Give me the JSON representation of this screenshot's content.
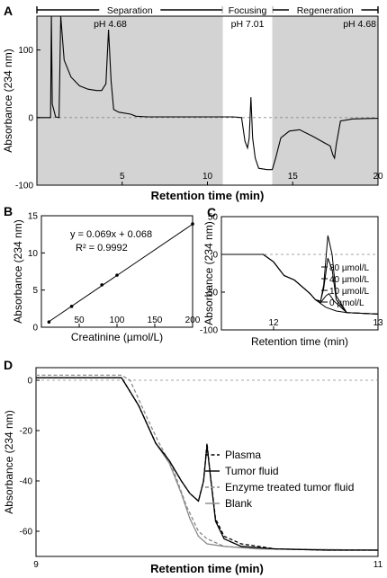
{
  "chart_data": [
    {
      "id": "A",
      "panel_label": "A",
      "type": "line",
      "xlabel": "Retention time (min)",
      "ylabel": "Absorbance (234 nm)",
      "xlim": [
        0,
        20
      ],
      "ylim": [
        -100,
        150
      ],
      "x_ticks": [
        "5",
        "10",
        "15",
        "20"
      ],
      "y_ticks": [
        "-100",
        "0",
        "100"
      ],
      "phases": [
        {
          "name": "Separation",
          "ph": "pH 4.68",
          "x_start": 0,
          "x_end": 10.9,
          "shaded": true
        },
        {
          "name": "Focusing",
          "ph": "pH 7.01",
          "x_start": 10.9,
          "x_end": 13.8,
          "shaded": false
        },
        {
          "name": "Regeneration",
          "ph": "pH 4.68",
          "x_start": 13.8,
          "x_end": 20,
          "shaded": true
        }
      ],
      "series": [
        {
          "points": [
            [
              0.0,
              0
            ],
            [
              0.5,
              0
            ],
            [
              0.8,
              0
            ],
            [
              0.85,
              150
            ],
            [
              0.9,
              20
            ],
            [
              1.1,
              1
            ],
            [
              1.3,
              0
            ],
            [
              1.4,
              150
            ],
            [
              1.6,
              85
            ],
            [
              2.0,
              60
            ],
            [
              2.5,
              47
            ],
            [
              3.0,
              42
            ],
            [
              3.5,
              40
            ],
            [
              3.8,
              40
            ],
            [
              4.05,
              50
            ],
            [
              4.2,
              130
            ],
            [
              4.35,
              55
            ],
            [
              4.5,
              12
            ],
            [
              4.8,
              8
            ],
            [
              5.5,
              5
            ],
            [
              5.8,
              2
            ],
            [
              6.5,
              1
            ],
            [
              8,
              1
            ],
            [
              10.9,
              1
            ],
            [
              11.5,
              1
            ],
            [
              12.0,
              0
            ],
            [
              12.2,
              -35
            ],
            [
              12.35,
              -45
            ],
            [
              12.45,
              -30
            ],
            [
              12.55,
              30
            ],
            [
              12.65,
              -30
            ],
            [
              12.8,
              -60
            ],
            [
              13.0,
              -75
            ],
            [
              13.5,
              -77
            ],
            [
              13.8,
              -77
            ],
            [
              14.0,
              -60
            ],
            [
              14.3,
              -30
            ],
            [
              14.8,
              -20
            ],
            [
              15.4,
              -18
            ],
            [
              16.2,
              -28
            ],
            [
              16.9,
              -38
            ],
            [
              17.2,
              -42
            ],
            [
              17.35,
              -55
            ],
            [
              17.45,
              -60
            ],
            [
              17.55,
              -40
            ],
            [
              17.8,
              -5
            ],
            [
              18.5,
              -2
            ],
            [
              20,
              -1
            ]
          ]
        }
      ]
    },
    {
      "id": "B",
      "panel_label": "B",
      "type": "scatter",
      "xlabel": "Creatinine (µmol/L)",
      "ylabel": "Absorbance (234 nm)",
      "xlim": [
        0,
        200
      ],
      "ylim": [
        0,
        15
      ],
      "x_ticks": [
        "50",
        "100",
        "150",
        "200"
      ],
      "y_ticks": [
        "0",
        "5",
        "10",
        "15"
      ],
      "annotation": [
        "y = 0.069x + 0.068",
        "R² = 0.9992"
      ],
      "x": [
        10,
        40,
        80,
        100,
        200
      ],
      "y": [
        0.7,
        2.8,
        5.7,
        7.0,
        13.9
      ],
      "fit": {
        "slope": 0.069,
        "intercept": 0.068
      }
    },
    {
      "id": "C",
      "panel_label": "C",
      "type": "line",
      "xlabel": "Retention time (min)",
      "ylabel": "Absorbance (234 nm)",
      "xlim": [
        11.5,
        13
      ],
      "ylim": [
        -100,
        50
      ],
      "x_ticks": [
        "12",
        "13"
      ],
      "y_ticks": [
        "-100",
        "-50",
        "0",
        "50"
      ],
      "legend": [
        "80 µmol/L",
        "40 µmol/L",
        "10 µmol/L",
        "0 µmol/L"
      ],
      "series": [
        {
          "points": [
            [
              11.5,
              0
            ],
            [
              11.9,
              0
            ],
            [
              12.0,
              -10
            ],
            [
              12.1,
              -28
            ],
            [
              12.2,
              -34
            ],
            [
              12.3,
              -46
            ],
            [
              12.35,
              -52
            ],
            [
              12.4,
              -60
            ],
            [
              12.45,
              -62
            ],
            [
              12.48,
              -40
            ],
            [
              12.52,
              25
            ],
            [
              12.56,
              0
            ],
            [
              12.6,
              -55
            ],
            [
              12.7,
              -77
            ],
            [
              13.0,
              -79
            ]
          ]
        },
        {
          "points": [
            [
              11.5,
              0
            ],
            [
              11.9,
              0
            ],
            [
              12.0,
              -10
            ],
            [
              12.1,
              -28
            ],
            [
              12.2,
              -34
            ],
            [
              12.3,
              -46
            ],
            [
              12.35,
              -52
            ],
            [
              12.4,
              -60
            ],
            [
              12.45,
              -62
            ],
            [
              12.48,
              -45
            ],
            [
              12.52,
              -5
            ],
            [
              12.56,
              -20
            ],
            [
              12.6,
              -60
            ],
            [
              12.7,
              -77
            ],
            [
              13.0,
              -79
            ]
          ]
        },
        {
          "points": [
            [
              11.5,
              0
            ],
            [
              11.9,
              0
            ],
            [
              12.0,
              -10
            ],
            [
              12.1,
              -28
            ],
            [
              12.2,
              -34
            ],
            [
              12.3,
              -46
            ],
            [
              12.35,
              -52
            ],
            [
              12.4,
              -60
            ],
            [
              12.45,
              -64
            ],
            [
              12.5,
              -55
            ],
            [
              12.53,
              -52
            ],
            [
              12.58,
              -62
            ],
            [
              12.7,
              -77
            ],
            [
              13.0,
              -79
            ]
          ]
        },
        {
          "points": [
            [
              11.5,
              0
            ],
            [
              11.9,
              0
            ],
            [
              12.0,
              -10
            ],
            [
              12.1,
              -28
            ],
            [
              12.2,
              -34
            ],
            [
              12.3,
              -46
            ],
            [
              12.35,
              -52
            ],
            [
              12.4,
              -60
            ],
            [
              12.5,
              -70
            ],
            [
              12.6,
              -75
            ],
            [
              12.7,
              -77
            ],
            [
              13.0,
              -79
            ]
          ]
        }
      ]
    },
    {
      "id": "D",
      "panel_label": "D",
      "type": "line",
      "xlabel": "Retention time (min)",
      "ylabel": "Absorbance (234 nm)",
      "xlim": [
        9,
        11
      ],
      "ylim": [
        -70,
        5
      ],
      "x_ticks": [
        "9",
        "11"
      ],
      "y_ticks": [
        "0",
        "-20",
        "-40",
        "-60"
      ],
      "legend": [
        "Plasma",
        "Tumor fluid",
        "Enzyme treated tumor fluid",
        "Blank"
      ],
      "series": [
        {
          "name": "Plasma",
          "style": "dashed-black",
          "points": [
            [
              9,
              1
            ],
            [
              9.5,
              1
            ],
            [
              9.6,
              -10
            ],
            [
              9.7,
              -25
            ],
            [
              9.78,
              -32
            ],
            [
              9.85,
              -40
            ],
            [
              9.9,
              -45
            ],
            [
              9.95,
              -48
            ],
            [
              9.98,
              -40
            ],
            [
              10.0,
              -25
            ],
            [
              10.02,
              -38
            ],
            [
              10.05,
              -55
            ],
            [
              10.1,
              -62
            ],
            [
              10.2,
              -65
            ],
            [
              10.4,
              -67
            ],
            [
              10.7,
              -67.5
            ],
            [
              11,
              -67.5
            ]
          ]
        },
        {
          "name": "Tumor fluid",
          "style": "solid-black",
          "points": [
            [
              9,
              1
            ],
            [
              9.5,
              1
            ],
            [
              9.6,
              -10
            ],
            [
              9.7,
              -25
            ],
            [
              9.78,
              -32
            ],
            [
              9.85,
              -40
            ],
            [
              9.9,
              -45
            ],
            [
              9.95,
              -48
            ],
            [
              9.98,
              -40
            ],
            [
              10.0,
              -26
            ],
            [
              10.02,
              -38
            ],
            [
              10.05,
              -56
            ],
            [
              10.1,
              -63
            ],
            [
              10.2,
              -66
            ],
            [
              10.4,
              -67
            ],
            [
              10.7,
              -67.5
            ],
            [
              11,
              -67.5
            ]
          ]
        },
        {
          "name": "Enzyme treated tumor fluid",
          "style": "dashed-grey",
          "points": [
            [
              9,
              2
            ],
            [
              9.5,
              2
            ],
            [
              9.55,
              0
            ],
            [
              9.65,
              -15
            ],
            [
              9.72,
              -25
            ],
            [
              9.8,
              -35
            ],
            [
              9.88,
              -50
            ],
            [
              9.95,
              -60
            ],
            [
              10.0,
              -63
            ],
            [
              10.1,
              -66
            ],
            [
              10.3,
              -67
            ],
            [
              11,
              -67.5
            ]
          ]
        },
        {
          "name": "Blank",
          "style": "solid-grey",
          "points": [
            [
              9,
              1
            ],
            [
              9.5,
              1
            ],
            [
              9.6,
              -10
            ],
            [
              9.7,
              -25
            ],
            [
              9.78,
              -33
            ],
            [
              9.85,
              -45
            ],
            [
              9.9,
              -55
            ],
            [
              9.95,
              -62
            ],
            [
              10.0,
              -65
            ],
            [
              10.1,
              -66
            ],
            [
              10.3,
              -67
            ],
            [
              11,
              -67.5
            ]
          ]
        }
      ]
    }
  ]
}
